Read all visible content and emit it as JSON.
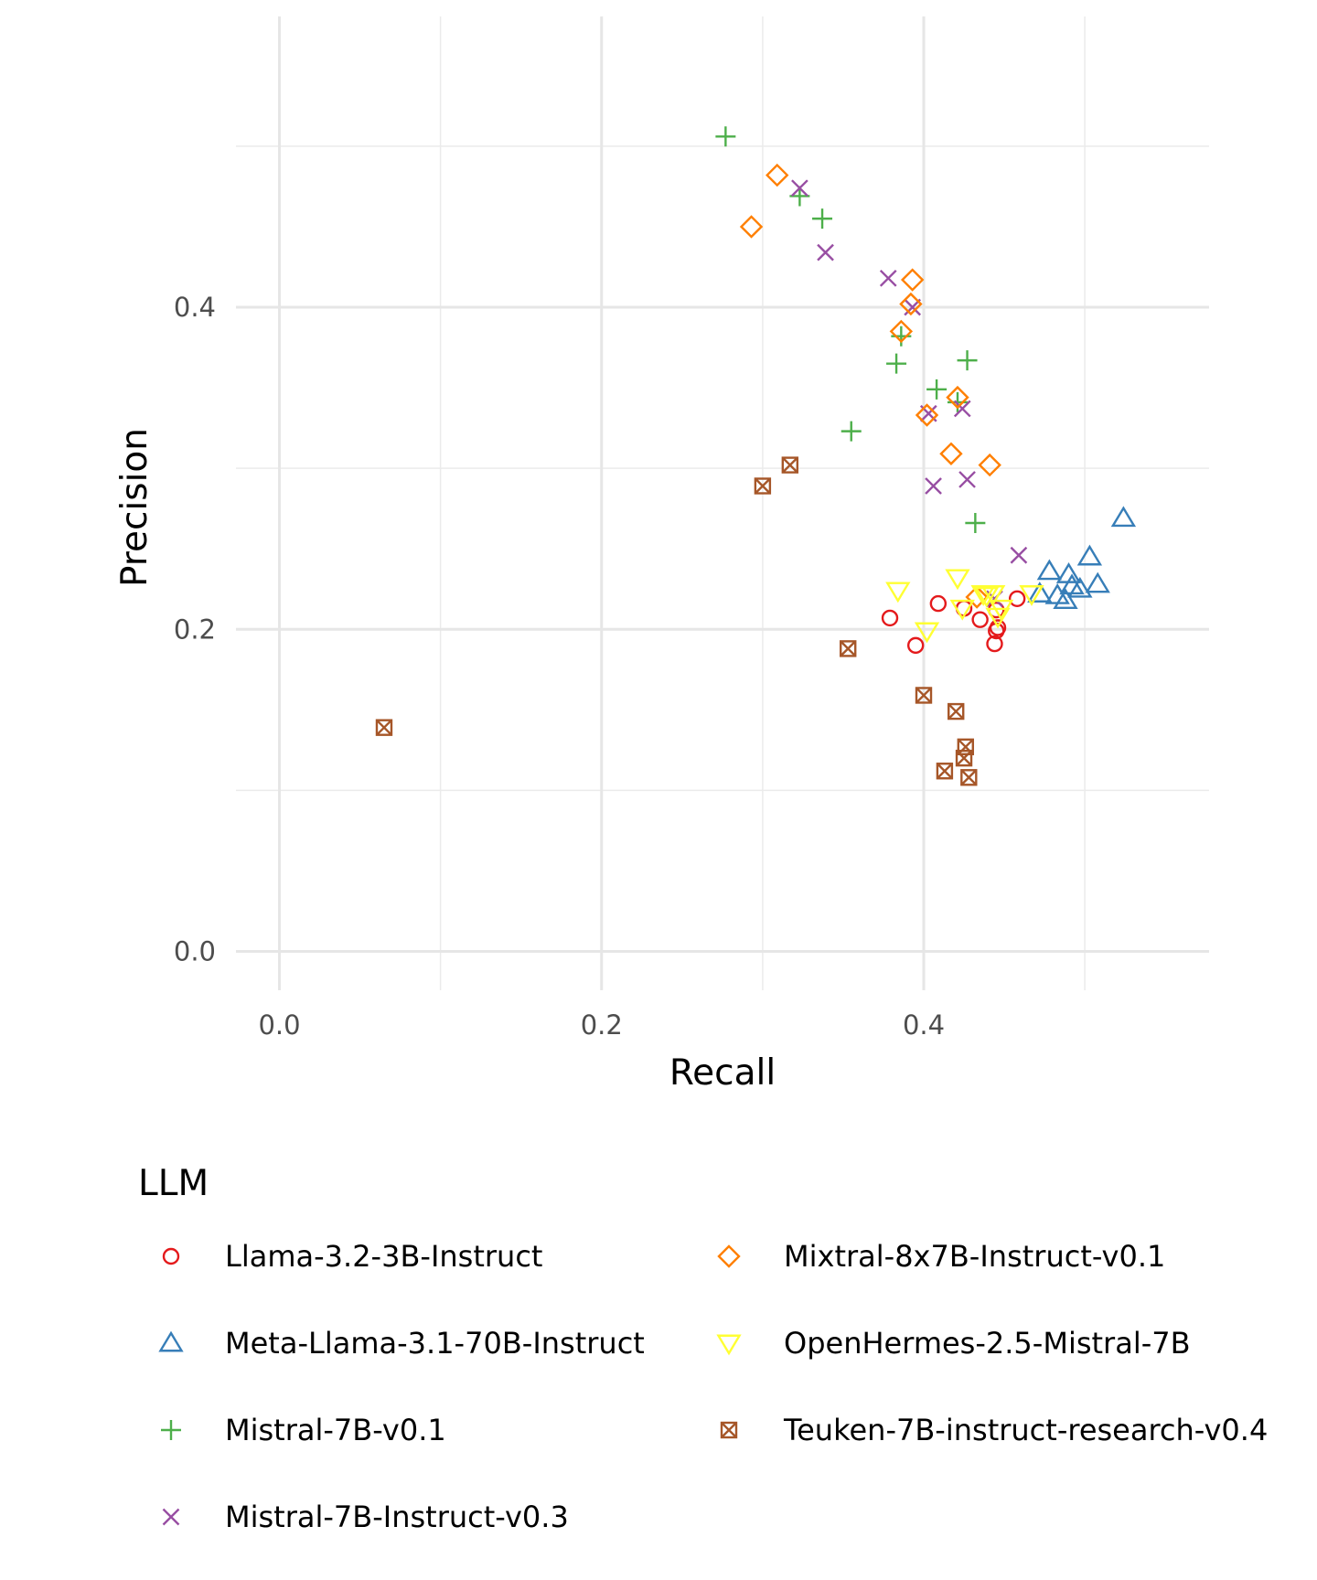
{
  "chart_data": {
    "type": "scatter",
    "title": "",
    "xlabel": "Recall",
    "ylabel": "Precision",
    "xlim": [
      -0.027,
      0.575
    ],
    "ylim": [
      -0.028,
      0.588
    ],
    "x_ticks": [
      "0.0",
      "0.2",
      "0.4"
    ],
    "y_ticks": [
      "0.0",
      "0.2",
      "0.4"
    ],
    "grid": true,
    "legend_title": "LLM",
    "legend_position": "bottom",
    "series": [
      {
        "name": "Llama-3.2-3B-Instruct",
        "color": "#E41A1C",
        "shape": "circle",
        "points": [
          [
            0.379,
            0.207
          ],
          [
            0.409,
            0.216
          ],
          [
            0.395,
            0.19
          ],
          [
            0.425,
            0.213
          ],
          [
            0.435,
            0.206
          ],
          [
            0.445,
            0.212
          ],
          [
            0.446,
            0.201
          ],
          [
            0.445,
            0.199
          ],
          [
            0.444,
            0.191
          ],
          [
            0.458,
            0.219
          ]
        ]
      },
      {
        "name": "Meta-Llama-3.1-70B-Instruct",
        "color": "#377EB8",
        "shape": "triangle",
        "points": [
          [
            0.478,
            0.236
          ],
          [
            0.472,
            0.222
          ],
          [
            0.483,
            0.221
          ],
          [
            0.488,
            0.218
          ],
          [
            0.49,
            0.234
          ],
          [
            0.492,
            0.227
          ],
          [
            0.497,
            0.225
          ],
          [
            0.503,
            0.245
          ],
          [
            0.508,
            0.228
          ],
          [
            0.524,
            0.269
          ]
        ]
      },
      {
        "name": "Mistral-7B-v0.1",
        "color": "#4DAF4A",
        "shape": "plus",
        "points": [
          [
            0.277,
            0.506
          ],
          [
            0.323,
            0.469
          ],
          [
            0.337,
            0.455
          ],
          [
            0.355,
            0.323
          ],
          [
            0.383,
            0.365
          ],
          [
            0.386,
            0.382
          ],
          [
            0.408,
            0.349
          ],
          [
            0.421,
            0.341
          ],
          [
            0.427,
            0.367
          ],
          [
            0.432,
            0.266
          ]
        ]
      },
      {
        "name": "Mistral-7B-Instruct-v0.3",
        "color": "#984EA3",
        "shape": "x",
        "points": [
          [
            0.323,
            0.474
          ],
          [
            0.339,
            0.434
          ],
          [
            0.378,
            0.418
          ],
          [
            0.393,
            0.4
          ],
          [
            0.403,
            0.334
          ],
          [
            0.406,
            0.289
          ],
          [
            0.424,
            0.337
          ],
          [
            0.427,
            0.293
          ],
          [
            0.444,
            0.219
          ],
          [
            0.459,
            0.246
          ]
        ]
      },
      {
        "name": "Mixtral-8x7B-Instruct-v0.1",
        "color": "#FF7F00",
        "shape": "diamond",
        "points": [
          [
            0.293,
            0.45
          ],
          [
            0.309,
            0.482
          ],
          [
            0.386,
            0.385
          ],
          [
            0.392,
            0.402
          ],
          [
            0.393,
            0.417
          ],
          [
            0.402,
            0.333
          ],
          [
            0.417,
            0.309
          ],
          [
            0.421,
            0.344
          ],
          [
            0.433,
            0.22
          ],
          [
            0.441,
            0.302
          ]
        ]
      },
      {
        "name": "OpenHermes-2.5-Mistral-7B",
        "color": "#FFFF33",
        "shape": "triangle-down",
        "points": [
          [
            0.384,
            0.224
          ],
          [
            0.402,
            0.199
          ],
          [
            0.421,
            0.232
          ],
          [
            0.424,
            0.213
          ],
          [
            0.437,
            0.222
          ],
          [
            0.439,
            0.221
          ],
          [
            0.443,
            0.222
          ],
          [
            0.446,
            0.208
          ],
          [
            0.448,
            0.213
          ],
          [
            0.467,
            0.222
          ]
        ]
      },
      {
        "name": "Teuken-7B-instruct-research-v0.4",
        "color": "#A65628",
        "shape": "square-x",
        "points": [
          [
            0.065,
            0.139
          ],
          [
            0.3,
            0.289
          ],
          [
            0.317,
            0.302
          ],
          [
            0.353,
            0.188
          ],
          [
            0.4,
            0.159
          ],
          [
            0.413,
            0.112
          ],
          [
            0.42,
            0.149
          ],
          [
            0.425,
            0.12
          ],
          [
            0.426,
            0.127
          ],
          [
            0.428,
            0.108
          ]
        ]
      }
    ]
  }
}
